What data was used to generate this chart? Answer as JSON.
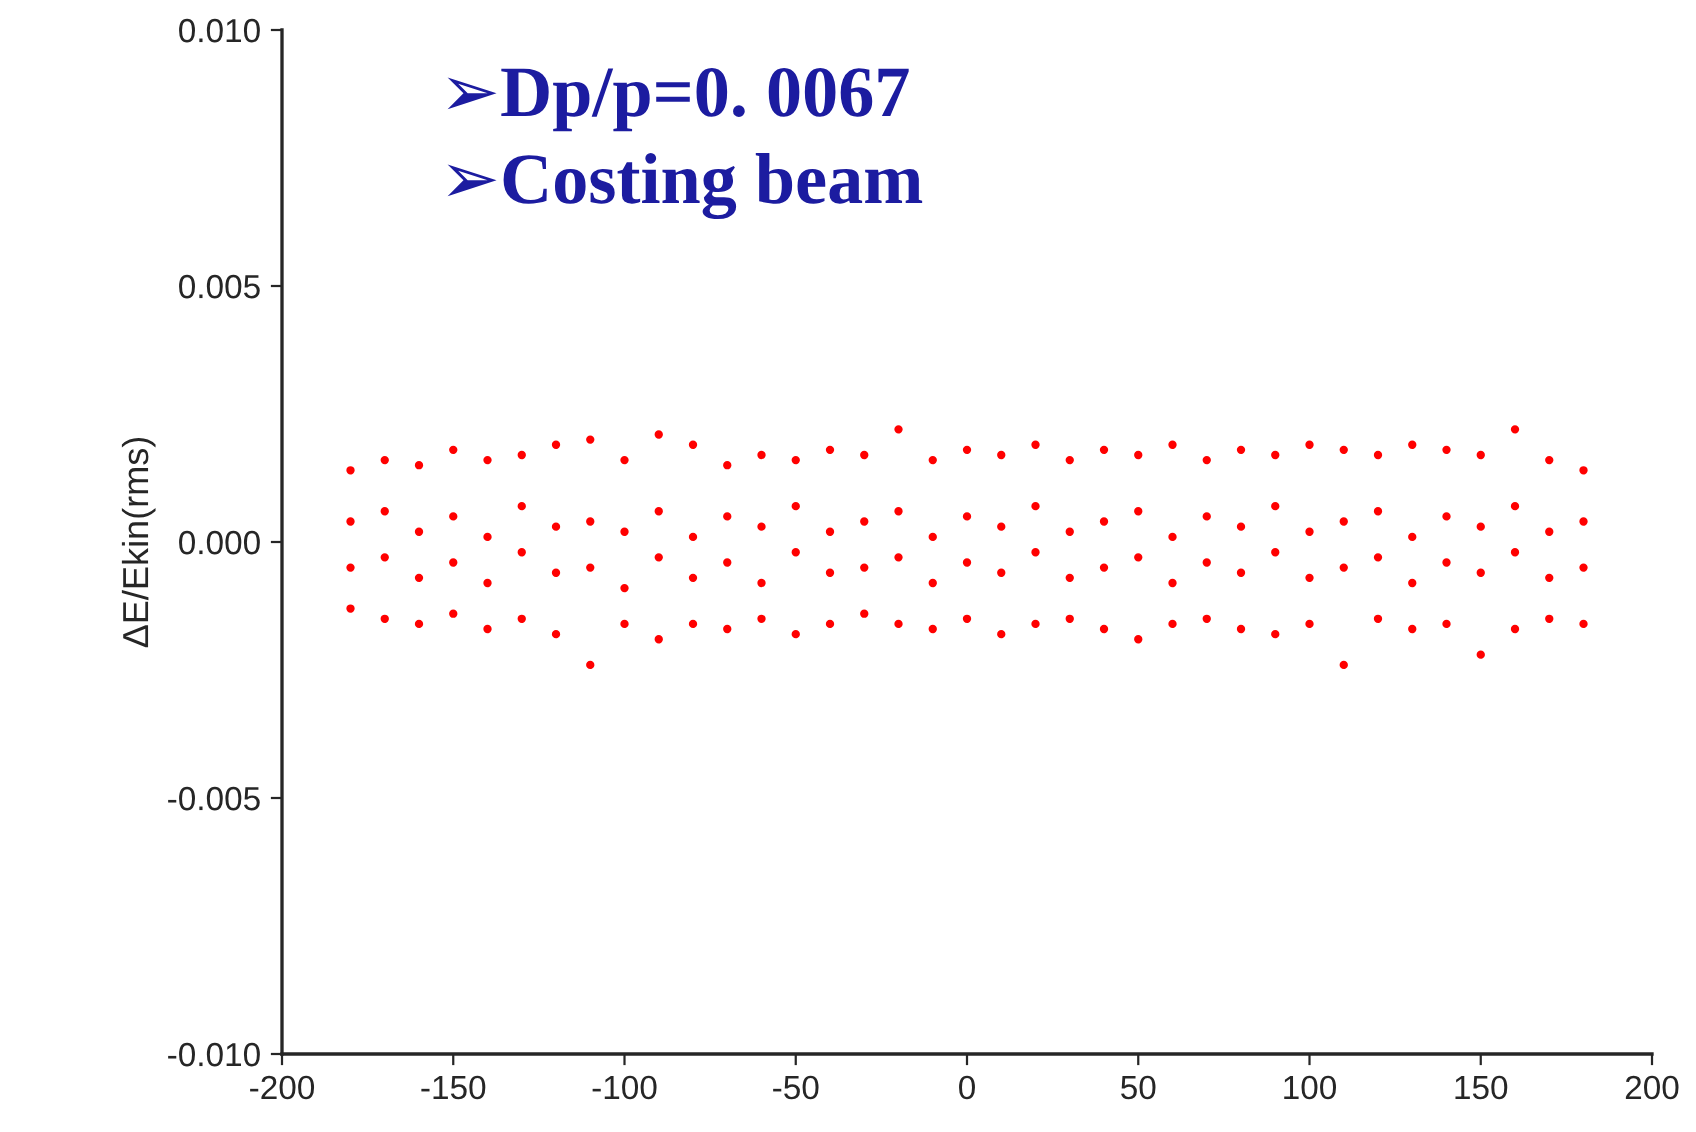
{
  "chart_data": {
    "type": "scatter",
    "ylabel": "ΔE/Ekin(rms)",
    "annotations": [
      "➢Dp/p=0. 0067",
      "➢Costing beam"
    ],
    "xlim": [
      -200,
      200
    ],
    "xticks": [
      -200,
      -150,
      -100,
      -50,
      0,
      50,
      100,
      150,
      200
    ],
    "ylim": [
      -0.01,
      0.01
    ],
    "yticks": [
      {
        "value": -0.01,
        "label": "-0.010"
      },
      {
        "value": -0.005,
        "label": "-0.005"
      },
      {
        "value": 0,
        "label": "0.000"
      },
      {
        "value": 0.005,
        "label": "0.005"
      },
      {
        "value": 0.01,
        "label": "0.010"
      }
    ],
    "grid": false,
    "legend": false,
    "marker": "circle",
    "series": [
      {
        "color": "#ff0000",
        "x": [
          -180,
          -180,
          -180,
          -180,
          -170,
          -170,
          -170,
          -170,
          -160,
          -160,
          -160,
          -160,
          -150,
          -150,
          -150,
          -150,
          -140,
          -140,
          -140,
          -140,
          -130,
          -130,
          -130,
          -130,
          -120,
          -120,
          -120,
          -120,
          -110,
          -110,
          -110,
          -110,
          -100,
          -100,
          -100,
          -100,
          -90,
          -90,
          -90,
          -90,
          -80,
          -80,
          -80,
          -80,
          -70,
          -70,
          -70,
          -70,
          -60,
          -60,
          -60,
          -60,
          -50,
          -50,
          -50,
          -50,
          -40,
          -40,
          -40,
          -40,
          -30,
          -30,
          -30,
          -30,
          -20,
          -20,
          -20,
          -20,
          -10,
          -10,
          -10,
          -10,
          0,
          0,
          0,
          0,
          10,
          10,
          10,
          10,
          20,
          20,
          20,
          20,
          30,
          30,
          30,
          30,
          40,
          40,
          40,
          40,
          50,
          50,
          50,
          50,
          60,
          60,
          60,
          60,
          70,
          70,
          70,
          70,
          80,
          80,
          80,
          80,
          90,
          90,
          90,
          90,
          100,
          100,
          100,
          100,
          110,
          110,
          110,
          110,
          120,
          120,
          120,
          120,
          130,
          130,
          130,
          130,
          140,
          140,
          140,
          140,
          150,
          150,
          150,
          150,
          160,
          160,
          160,
          160,
          170,
          170,
          170,
          170,
          180,
          180,
          180,
          180
        ],
        "values": [
          0.0014,
          0.0004,
          -0.0005,
          -0.0013,
          0.0016,
          0.0006,
          -0.0003,
          -0.0015,
          0.0015,
          0.0002,
          -0.0007,
          -0.0016,
          0.0018,
          0.0005,
          -0.0004,
          -0.0014,
          0.0016,
          0.0001,
          -0.0008,
          -0.0017,
          0.0017,
          0.0007,
          -0.0002,
          -0.0015,
          0.0019,
          0.0003,
          -0.0006,
          -0.0018,
          0.002,
          0.0004,
          -0.0005,
          -0.0024,
          0.0016,
          0.0002,
          -0.0009,
          -0.0016,
          0.0021,
          0.0006,
          -0.0003,
          -0.0019,
          0.0019,
          0.0001,
          -0.0007,
          -0.0016,
          0.0015,
          0.0005,
          -0.0004,
          -0.0017,
          0.0017,
          0.0003,
          -0.0008,
          -0.0015,
          0.0016,
          0.0007,
          -0.0002,
          -0.0018,
          0.0018,
          0.0002,
          -0.0006,
          -0.0016,
          0.0017,
          0.0004,
          -0.0005,
          -0.0014,
          0.0022,
          0.0006,
          -0.0003,
          -0.0016,
          0.0016,
          0.0001,
          -0.0008,
          -0.0017,
          0.0018,
          0.0005,
          -0.0004,
          -0.0015,
          0.0017,
          0.0003,
          -0.0006,
          -0.0018,
          0.0019,
          0.0007,
          -0.0002,
          -0.0016,
          0.0016,
          0.0002,
          -0.0007,
          -0.0015,
          0.0018,
          0.0004,
          -0.0005,
          -0.0017,
          0.0017,
          0.0006,
          -0.0003,
          -0.0019,
          0.0019,
          0.0001,
          -0.0008,
          -0.0016,
          0.0016,
          0.0005,
          -0.0004,
          -0.0015,
          0.0018,
          0.0003,
          -0.0006,
          -0.0017,
          0.0017,
          0.0007,
          -0.0002,
          -0.0018,
          0.0019,
          0.0002,
          -0.0007,
          -0.0016,
          0.0018,
          0.0004,
          -0.0005,
          -0.0024,
          0.0017,
          0.0006,
          -0.0003,
          -0.0015,
          0.0019,
          0.0001,
          -0.0008,
          -0.0017,
          0.0018,
          0.0005,
          -0.0004,
          -0.0016,
          0.0017,
          0.0003,
          -0.0006,
          -0.0022,
          0.0022,
          0.0007,
          -0.0002,
          -0.0017,
          0.0016,
          0.0002,
          -0.0007,
          -0.0015,
          0.0014,
          0.0004,
          -0.0005,
          -0.0016
        ]
      }
    ]
  }
}
